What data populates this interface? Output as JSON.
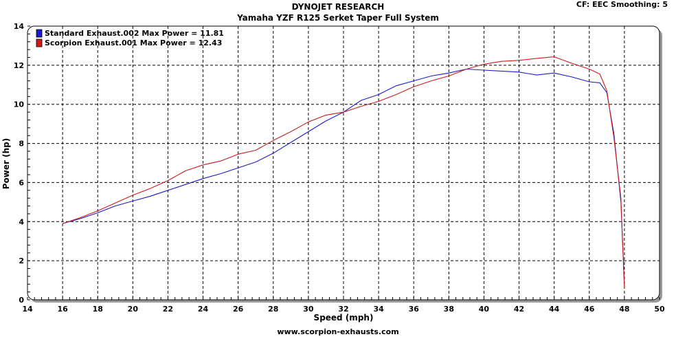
{
  "header": {
    "title": "DYNOJET RESEARCH",
    "subtitle": "Yamaha YZF R125 Serket Taper Full System",
    "cf_info": "CF: EEC  Smoothing: 5"
  },
  "footer": {
    "website": "www.scorpion-exhausts.com"
  },
  "chart_data": {
    "type": "line",
    "title": "DYNOJET RESEARCH",
    "subtitle": "Yamaha YZF R125 Serket Taper Full System",
    "xlabel": "Speed (mph)",
    "ylabel": "Power (hp)",
    "xlim": [
      14,
      50
    ],
    "ylim": [
      0,
      14
    ],
    "xticks": [
      14,
      16,
      18,
      20,
      22,
      24,
      26,
      28,
      30,
      32,
      34,
      36,
      38,
      40,
      42,
      44,
      46,
      48,
      50
    ],
    "yticks": [
      0,
      2,
      4,
      6,
      8,
      10,
      12,
      14
    ],
    "grid": true,
    "legend_position": "top-left",
    "series": [
      {
        "name": "Standard Exhaust.002 Max Power = 11.81",
        "color": "#1a1acc",
        "x": [
          16,
          17,
          18,
          19,
          20,
          21,
          22,
          23,
          24,
          25,
          26,
          27,
          28,
          29,
          30,
          31,
          32,
          33,
          34,
          35,
          36,
          37,
          38,
          39,
          40,
          41,
          42,
          43,
          44,
          45,
          46,
          46.6,
          47,
          47.4,
          47.8,
          48
        ],
        "y": [
          3.9,
          4.15,
          4.45,
          4.8,
          5.05,
          5.3,
          5.6,
          5.9,
          6.2,
          6.45,
          6.75,
          7.05,
          7.5,
          8.05,
          8.6,
          9.15,
          9.6,
          10.2,
          10.5,
          10.95,
          11.2,
          11.45,
          11.6,
          11.8,
          11.75,
          11.7,
          11.65,
          11.5,
          11.6,
          11.4,
          11.15,
          11.1,
          10.6,
          8.5,
          5.0,
          0.7
        ]
      },
      {
        "name": "Scorpion Exhaust.001 Max Power = 12.43",
        "color": "#cc1a1a",
        "x": [
          16,
          17,
          18,
          19,
          20,
          21,
          22,
          23,
          24,
          25,
          26,
          27,
          28,
          29,
          30,
          31,
          32,
          33,
          34,
          35,
          36,
          37,
          38,
          39,
          40,
          41,
          42,
          43,
          44,
          45,
          46,
          46.6,
          47,
          47.4,
          47.8,
          48
        ],
        "y": [
          3.9,
          4.2,
          4.55,
          4.95,
          5.35,
          5.7,
          6.1,
          6.6,
          6.9,
          7.1,
          7.45,
          7.65,
          8.15,
          8.6,
          9.1,
          9.45,
          9.6,
          9.9,
          10.15,
          10.5,
          10.9,
          11.2,
          11.45,
          11.8,
          12.05,
          12.2,
          12.25,
          12.35,
          12.43,
          12.1,
          11.8,
          11.55,
          10.7,
          8.3,
          5.2,
          0.6
        ]
      }
    ]
  }
}
